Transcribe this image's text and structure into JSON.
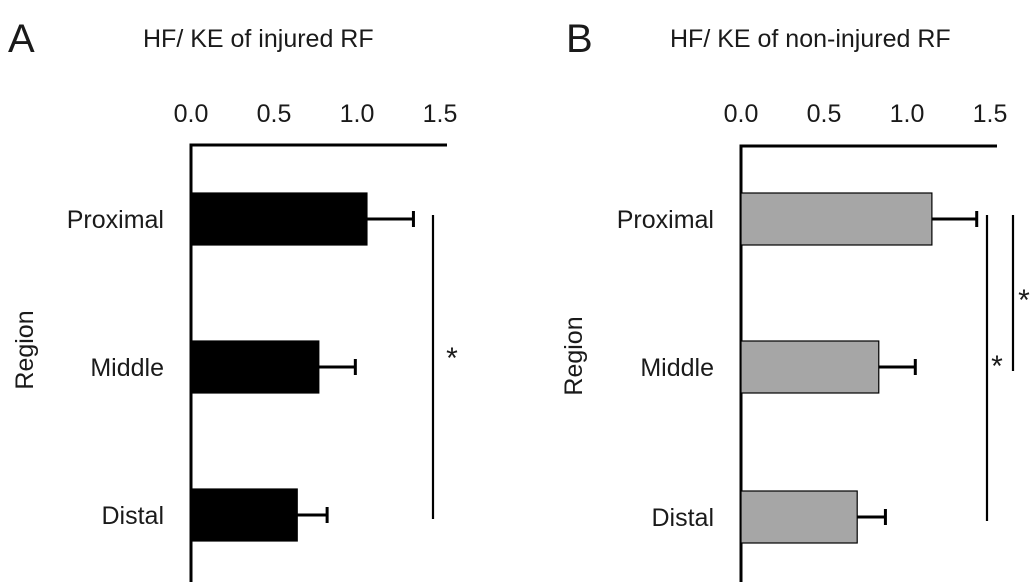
{
  "chart_data": [
    {
      "type": "bar",
      "orientation": "horizontal",
      "panel_label": "A",
      "title": "HF/ KE of injured RF",
      "ylabel": "Region",
      "categories": [
        "Proximal",
        "Middle",
        "Distal"
      ],
      "values": [
        1.06,
        0.77,
        0.64
      ],
      "errors": [
        0.28,
        0.22,
        0.18
      ],
      "xlim": [
        0,
        1.5
      ],
      "xticks": [
        "0.0",
        "0.5",
        "1.0",
        "1.5"
      ],
      "x_axis_position": "top",
      "bar_color": "#000000",
      "significance": [
        {
          "from": "Proximal",
          "to": "Distal",
          "label": "*"
        }
      ]
    },
    {
      "type": "bar",
      "orientation": "horizontal",
      "panel_label": "B",
      "title": "HF/ KE of non-injured RF",
      "ylabel": "Region",
      "categories": [
        "Proximal",
        "Middle",
        "Distal"
      ],
      "values": [
        1.15,
        0.83,
        0.7
      ],
      "errors": [
        0.27,
        0.22,
        0.17
      ],
      "xlim": [
        0,
        1.5
      ],
      "xticks": [
        "0.0",
        "0.5",
        "1.0",
        "1.5"
      ],
      "x_axis_position": "top",
      "bar_color": "#a6a6a6",
      "significance": [
        {
          "from": "Proximal",
          "to": "Distal",
          "label": "*"
        },
        {
          "from": "Proximal",
          "to": "Middle",
          "label": "*"
        }
      ]
    }
  ]
}
